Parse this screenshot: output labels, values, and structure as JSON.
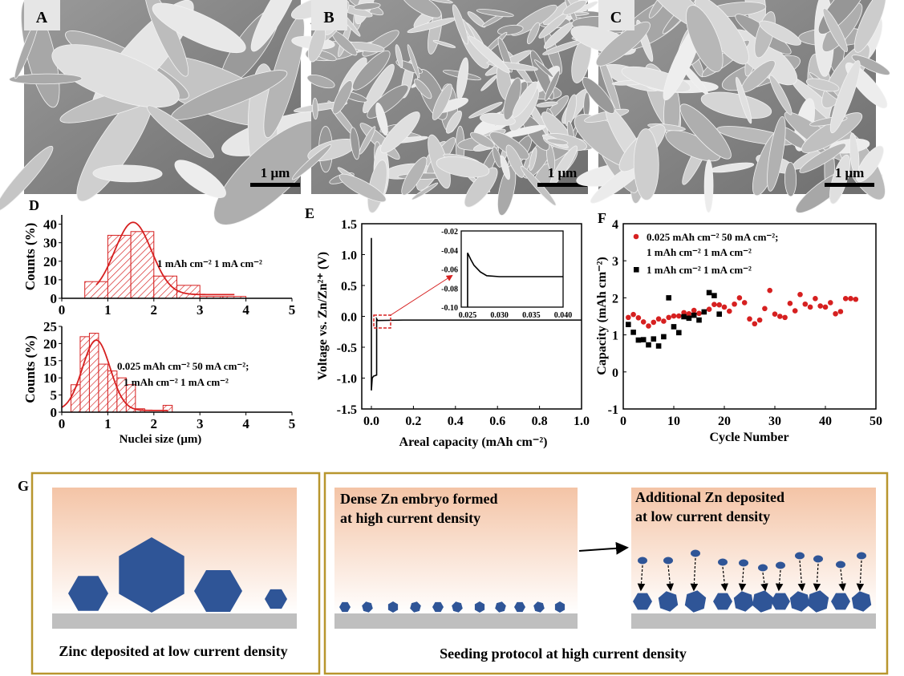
{
  "panels": {
    "A": {
      "label": "A",
      "scale_bar": "1 μm"
    },
    "B": {
      "label": "B",
      "scale_bar": "1 μm"
    },
    "C": {
      "label": "C",
      "scale_bar": "1 μm"
    },
    "D": {
      "label": "D"
    },
    "E": {
      "label": "E"
    },
    "F": {
      "label": "F"
    },
    "G": {
      "label": "G"
    }
  },
  "colors": {
    "red": "#d62020",
    "black": "#000000",
    "zinc_blue": "#2f5597",
    "substrate": "#bfbfbf",
    "frame": "#b8962e",
    "electrolyte": "#f4c4a6"
  },
  "chart_data": [
    {
      "id": "D-top",
      "type": "bar",
      "bin_edges": [
        0.5,
        1.0,
        1.5,
        2.0,
        2.5,
        3.0,
        3.5,
        4.0
      ],
      "values": [
        9,
        34,
        36,
        12,
        7,
        1,
        1
      ],
      "fit": {
        "type": "gaussian",
        "peak": 41,
        "mean": 1.55,
        "sigma": 0.4,
        "baseline": 2,
        "range": [
          0.75,
          3.75
        ]
      },
      "annotation": "1 mAh cm⁻²  1 mA cm⁻²",
      "ylabel": "Counts (%)",
      "xlim": [
        0,
        5
      ],
      "ylim": [
        0,
        45
      ],
      "xticks": [
        "0",
        "1",
        "2",
        "3",
        "4",
        "5"
      ],
      "yticks": [
        "0",
        "10",
        "20",
        "30",
        "40"
      ]
    },
    {
      "id": "D-bottom",
      "type": "bar",
      "bin_edges": [
        0.2,
        0.4,
        0.6,
        0.8,
        1.0,
        1.2,
        1.4,
        1.6,
        1.8,
        2.0,
        2.2,
        2.4
      ],
      "values": [
        8,
        22,
        23,
        14,
        12,
        10,
        8,
        1,
        0,
        0,
        2
      ],
      "fit": {
        "type": "gaussian",
        "peak": 21,
        "mean": 0.75,
        "sigma": 0.3,
        "baseline": 0.5,
        "range": [
          0,
          2.3
        ]
      },
      "annotation": [
        "0.025 mAh cm⁻²  50 mA cm⁻²;",
        "1 mAh cm⁻²  1 mA cm⁻²"
      ],
      "xlabel": "Nuclei size (μm)",
      "ylabel": "Counts (%)",
      "xlim": [
        0,
        5
      ],
      "ylim": [
        0,
        25
      ],
      "xticks": [
        "0",
        "1",
        "2",
        "3",
        "4",
        "5"
      ],
      "yticks": [
        "0",
        "5",
        "10",
        "15",
        "20",
        "25"
      ]
    },
    {
      "id": "E",
      "type": "line",
      "x": [
        0.0,
        0.0,
        0.0,
        0.0,
        0.004,
        0.01,
        0.025,
        0.025,
        0.03,
        0.15,
        1.0
      ],
      "y": [
        -0.55,
        1.27,
        -0.55,
        -1.2,
        -1.0,
        -0.97,
        -0.95,
        -0.04,
        -0.068,
        -0.06,
        -0.06
      ],
      "xlabel": "Areal capacity (mAh cm⁻²)",
      "ylabel": "Voltage vs. Zn/Zn²⁺ (V)",
      "xlim": [
        -0.05,
        1.0
      ],
      "ylim": [
        -1.5,
        1.5
      ],
      "xticks": [
        "0.0",
        "0.2",
        "0.4",
        "0.6",
        "0.8",
        "1.0"
      ],
      "yticks": [
        "-1.5",
        "-1.0",
        "-0.5",
        "0.0",
        "0.5",
        "1.0",
        "1.5"
      ],
      "inset": {
        "x": [
          0.025,
          0.025,
          0.0255,
          0.026,
          0.027,
          0.028,
          0.03,
          0.04
        ],
        "y": [
          -0.1,
          -0.043,
          -0.05,
          -0.056,
          -0.063,
          -0.067,
          -0.068,
          -0.068
        ],
        "xlim": [
          0.024,
          0.04
        ],
        "ylim": [
          -0.1,
          -0.02
        ],
        "xticks": [
          "0.025",
          "0.030",
          "0.035",
          "0.040"
        ],
        "yticks": [
          "-0.02",
          "-0.04",
          "-0.06",
          "-0.08",
          "-0.10"
        ]
      }
    },
    {
      "id": "F",
      "type": "scatter",
      "series": [
        {
          "name": "0.025 mAh cm⁻²  50 mA cm⁻²;",
          "name2": "1 mAh cm⁻²  1 mA cm⁻²",
          "marker": "circle",
          "color": "#d62020",
          "x": [
            1,
            2,
            3,
            4,
            5,
            6,
            7,
            8,
            9,
            10,
            11,
            12,
            13,
            14,
            15,
            16,
            17,
            18,
            19,
            20,
            21,
            22,
            23,
            24,
            25,
            26,
            27,
            28,
            29,
            30,
            31,
            32,
            33,
            34,
            35,
            36,
            37,
            38,
            39,
            40,
            41,
            42,
            43,
            44,
            45,
            46
          ],
          "y": [
            1.47,
            1.55,
            1.46,
            1.35,
            1.24,
            1.34,
            1.43,
            1.37,
            1.47,
            1.51,
            1.51,
            1.6,
            1.57,
            1.66,
            1.58,
            1.62,
            1.69,
            1.82,
            1.81,
            1.75,
            1.64,
            1.83,
            2.0,
            1.87,
            1.43,
            1.3,
            1.4,
            1.71,
            2.2,
            1.56,
            1.5,
            1.47,
            1.85,
            1.65,
            2.09,
            1.83,
            1.75,
            1.98,
            1.78,
            1.75,
            1.87,
            1.57,
            1.63,
            1.98,
            1.98,
            1.96
          ]
        },
        {
          "name": "1 mAh cm⁻²  1 mA cm⁻²",
          "marker": "square",
          "color": "#000000",
          "x": [
            1,
            2,
            3,
            4,
            5,
            6,
            7,
            8,
            9,
            10,
            11,
            12,
            13,
            14,
            15,
            16,
            17,
            18,
            19
          ],
          "y": [
            1.28,
            1.07,
            0.86,
            0.87,
            0.73,
            0.89,
            0.7,
            0.95,
            2.0,
            1.22,
            1.06,
            1.49,
            1.45,
            1.53,
            1.4,
            1.62,
            2.14,
            2.06,
            1.56
          ]
        }
      ],
      "xlabel": "Cycle Number",
      "ylabel": "Capacity (mAh cm⁻²)",
      "xlim": [
        0,
        50
      ],
      "ylim": [
        -1,
        4
      ],
      "xticks": [
        "0",
        "10",
        "20",
        "30",
        "40",
        "50"
      ],
      "yticks": [
        "-1",
        "0",
        "1",
        "2",
        "3",
        "4"
      ],
      "legend": "top-left"
    }
  ],
  "diagram": {
    "left_caption": "Zinc deposited at low current density",
    "mid_text": [
      "Dense Zn embryo formed",
      "at high current density"
    ],
    "right_text": [
      "Additional Zn deposited",
      "at low current density"
    ],
    "right_caption": "Seeding protocol at high current density"
  }
}
